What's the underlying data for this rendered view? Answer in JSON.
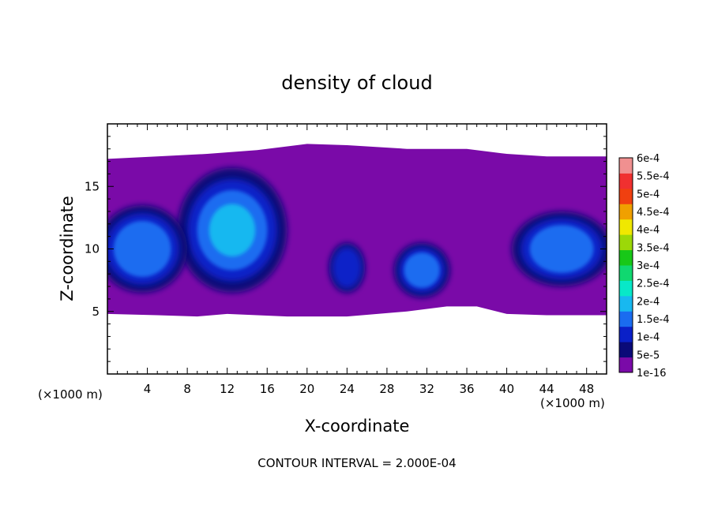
{
  "chart_data": {
    "type": "heatmap",
    "title": "density of cloud",
    "xlabel": "X-coordinate",
    "ylabel": "Z-coordinate",
    "x_unit": "(×1000 m)",
    "x_unit_right": "(×1000 m)",
    "footer": "CONTOUR INTERVAL = 2.000E-04",
    "xlim": [
      0,
      50
    ],
    "ylim": [
      0,
      20
    ],
    "x_ticks": [
      4,
      8,
      12,
      16,
      20,
      24,
      28,
      32,
      36,
      40,
      44,
      48
    ],
    "y_ticks": [
      5,
      10,
      15
    ],
    "colorbar": {
      "labels": [
        "1e-16",
        "5e-5",
        "1e-4",
        "1.5e-4",
        "2e-4",
        "2.5e-4",
        "3e-4",
        "3.5e-4",
        "4e-4",
        "4.5e-4",
        "5e-4",
        "5.5e-4",
        "6e-4"
      ],
      "colors": [
        "#7a0aa8",
        "#0a0a78",
        "#0a20c8",
        "#1a6cf0",
        "#18b8f0",
        "#08e8c8",
        "#10d870",
        "#18c818",
        "#9cd808",
        "#f0e800",
        "#f0a000",
        "#f04010",
        "#f03030",
        "#f09090"
      ]
    },
    "cloud_top": [
      [
        0,
        17.2
      ],
      [
        5,
        17.4
      ],
      [
        10,
        17.6
      ],
      [
        15,
        17.9
      ],
      [
        20,
        18.4
      ],
      [
        24,
        18.3
      ],
      [
        30,
        18.0
      ],
      [
        36,
        18.0
      ],
      [
        40,
        17.6
      ],
      [
        44,
        17.4
      ],
      [
        50,
        17.4
      ]
    ],
    "cloud_base": [
      [
        0,
        4.8
      ],
      [
        5,
        4.7
      ],
      [
        9,
        4.6
      ],
      [
        12,
        4.8
      ],
      [
        18,
        4.6
      ],
      [
        24,
        4.6
      ],
      [
        30,
        5.0
      ],
      [
        34,
        5.4
      ],
      [
        37,
        5.4
      ],
      [
        40,
        4.8
      ],
      [
        44,
        4.7
      ],
      [
        50,
        4.7
      ]
    ],
    "cells": [
      {
        "x": 12.5,
        "z": 11.5,
        "rx": 5.5,
        "rz": 5.0,
        "level": 0.0002
      },
      {
        "x": 3.5,
        "z": 10.0,
        "rx": 4.5,
        "rz": 3.5,
        "level": 0.00018
      },
      {
        "x": 31.5,
        "z": 8.3,
        "rx": 2.8,
        "rz": 2.2,
        "level": 0.00019
      },
      {
        "x": 45.5,
        "z": 10.0,
        "rx": 5.0,
        "rz": 3.0,
        "level": 0.00018
      },
      {
        "x": 24.0,
        "z": 8.5,
        "rx": 1.8,
        "rz": 2.0,
        "level": 0.00013
      }
    ]
  }
}
